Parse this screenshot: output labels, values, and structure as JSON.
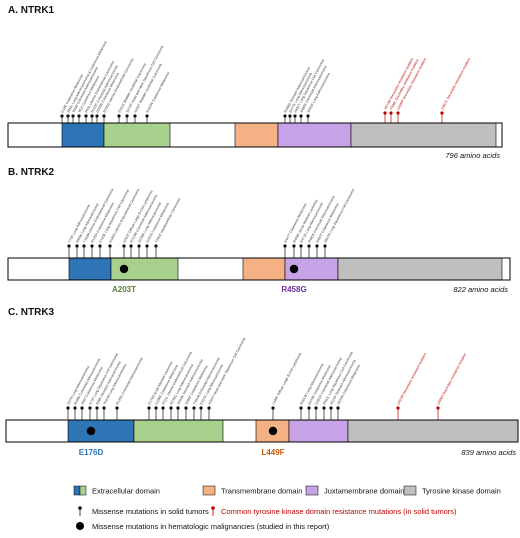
{
  "colors": {
    "extracellular": "#2e75b6",
    "extracellular_light": "#a9d18e",
    "transmembrane": "#f4b183",
    "juxtamembrane": "#c5a3e6",
    "kinase": "#bfbfbf",
    "resistance": "#c00000",
    "missense": "#111111"
  },
  "panels": [
    {
      "title": "A. NTRK1",
      "length_label": "796 amino acids",
      "heme_labels": [],
      "mutation_labels": [
        "G18E Cutaneous Melanoma",
        "W42L Lung Adenocarcinoma & Cutaneous Melanoma",
        "V50M Colorectal Adenocarcinoma",
        "V61I Cutaneous Melanoma",
        "P83L Uterine Endometrioid Carcinoma",
        "R103C Colorectal Adenocarcinoma",
        "D200N Cutaneous Melanoma",
        "R220Q Uterine Endometrioid Carcinoma",
        "E251K Bladder Urothelial Carcinoma",
        "S272F Head and Neck Squamous Cell Carcinoma",
        "A432T Bladder Urothelial Carcinoma",
        "R442W Cutaneous Melanoma",
        "R458Q Stomach Adenocarcinoma",
        "E477K Lung Adenocarcinoma",
        "H491Y Lung Squamous Cell Carcinoma",
        "A498V Colorectal Adenocarcinoma",
        "S505F Lung Adenocarcinoma"
      ],
      "resistance_labels": [
        "V573M Secondary resistance mutation",
        "F589L Secondary resistance mutation",
        "G595R Secondary resistance mutation",
        "G667C Secondary resistance mutation"
      ]
    },
    {
      "title": "B. NTRK2",
      "length_label": "822 amino acids",
      "heme_labels": [
        "A203T",
        "R458G"
      ],
      "mutation_labels": [
        "T72P Lung Adenocarcinoma",
        "R85W Lung Adenocarcinoma",
        "T103M Uterine Endometrioid Carcinoma",
        "R125H Cutaneous Melanoma",
        "E140K Lung Squamous Cell Carcinoma",
        "N184S Uterine Endometrioid Carcinoma",
        "A203T Diffuse Large B-Cell Lymphoma",
        "R213W Colorectal Adenocarcinoma",
        "D236N Lung Adenocarcinoma",
        "G251E Cutaneous Melanoma",
        "T281K Hepatocellular Carcinoma",
        "A447T Cutaneous Melanoma",
        "R458G Acute Myeloid Leukemia",
        "E471K Lung Adenocarcinoma",
        "P485S Colorectal Adenocarcinoma",
        "S497F Cutaneous Melanoma",
        "D507N Lung Squamous Cell Carcinoma"
      ],
      "resistance_labels": []
    },
    {
      "title": "C. NTRK3",
      "length_label": "839 amino acids",
      "heme_labels": [
        "E176D",
        "L449F"
      ],
      "mutation_labels": [
        "D37N Lung Adenocarcinoma",
        "R48W Colorectal Adenocarcinoma",
        "A56T Cutaneous Melanoma",
        "S72F Lung Squamous Cell Carcinoma",
        "E89K Stomach Adenocarcinoma",
        "V101M Lung Adenocarcinoma",
        "R125C Colorectal Adenocarcinoma",
        "E176D Acute Myeloid Leukemia",
        "G198E Cutaneous Melanoma",
        "P211L Uterine Endometrioid Carcinoma",
        "R236Q Lung Adenocarcinoma",
        "D260N Stomach Adenocarcinoma",
        "S285F Cutaneous Melanoma",
        "T301M Colorectal Adenocarcinoma",
        "E327K Lung Adenocarcinoma",
        "A344T Head and Neck Squamous Cell Carcinoma",
        "L449F Diffuse Large B-Cell Lymphoma",
        "R461W Lung Adenocarcinoma",
        "E478K Cutaneous Melanoma",
        "G491R Colorectal Adenocarcinoma",
        "P502L Lung Squamous Cell Carcinoma",
        "S515F Stomach Adenocarcinoma",
        "D522N Cutaneous Melanoma"
      ],
      "resistance_labels": [
        "G623R Secondary resistance mutation",
        "G696A Secondary resistance mutation"
      ]
    }
  ],
  "legend": {
    "extracellular": "Extracellular domain",
    "transmembrane": "Transmembrane domain",
    "juxtamembrane": "Juxtamembrane domain",
    "kinase": "Tyrosine kinase domain",
    "missense_solid": "Missense mutations in solid tumors",
    "resistance": "Common tyrosine kinase domain resistance mutations (in solid tumors)",
    "missense_heme": "Missense mutations in hematologic malignancies (studied in this report)"
  }
}
